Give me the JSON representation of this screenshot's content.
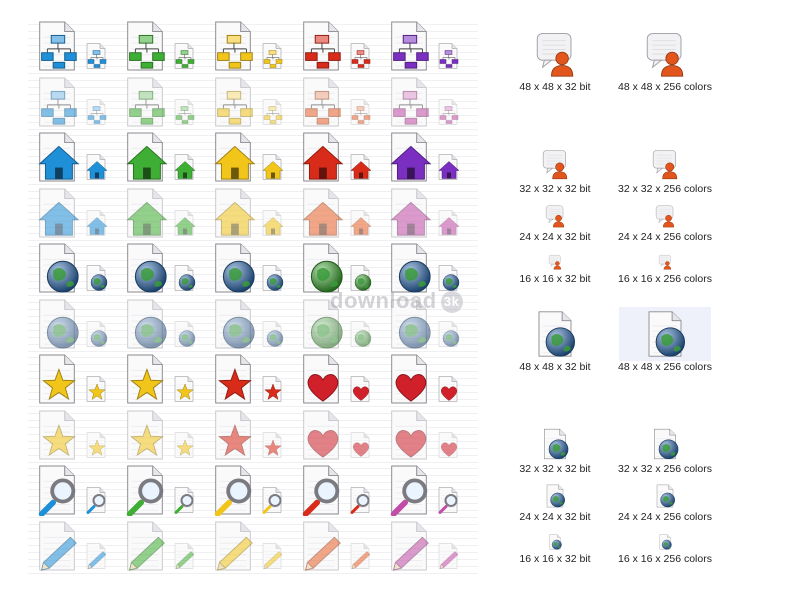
{
  "colors": {
    "blue": "#1f8fd8",
    "green": "#3fae34",
    "yellow": "#f2c51b",
    "red": "#d92b1a",
    "purple": "#7a2fc0",
    "orange": "#e8632b",
    "pink": "#c24da8",
    "globe": "#2f6fb8",
    "heart": "#d0202a",
    "user": "#e2561e"
  },
  "rows": [
    {
      "icon": "sitemap-document-icon",
      "variant": "bold",
      "palette": [
        "blue",
        "green",
        "yellow",
        "red",
        "purple"
      ]
    },
    {
      "icon": "sitemap-document-icon",
      "variant": "light",
      "palette": [
        "blue",
        "green",
        "yellow",
        "orange",
        "pink"
      ]
    },
    {
      "icon": "home-document-icon",
      "variant": "bold",
      "palette": [
        "blue",
        "green",
        "yellow",
        "red",
        "purple"
      ]
    },
    {
      "icon": "home-document-icon",
      "variant": "light",
      "palette": [
        "blue",
        "green",
        "yellow",
        "orange",
        "pink"
      ]
    },
    {
      "icon": "globe-document-icon",
      "variant": "bold",
      "palette": [
        "globe",
        "globe",
        "globe",
        "green",
        "globe"
      ]
    },
    {
      "icon": "globe-document-icon",
      "variant": "light",
      "palette": [
        "globe",
        "globe",
        "globe",
        "green",
        "globe"
      ]
    },
    {
      "icon": "star-document-icon",
      "variant": "bold",
      "palette": [
        "yellow",
        "yellow",
        "red",
        "heart",
        "heart"
      ],
      "shapes": [
        "star",
        "star",
        "star",
        "heart",
        "heart"
      ]
    },
    {
      "icon": "star-document-icon",
      "variant": "light",
      "palette": [
        "yellow",
        "yellow",
        "red",
        "heart",
        "heart"
      ],
      "shapes": [
        "star",
        "star",
        "star",
        "heart",
        "heart"
      ]
    },
    {
      "icon": "magnifier-document-icon",
      "variant": "bold",
      "palette": [
        "blue",
        "green",
        "yellow",
        "red",
        "pink"
      ]
    },
    {
      "icon": "pencil-document-icon",
      "variant": "light",
      "palette": [
        "blue",
        "green",
        "yellow",
        "orange",
        "pink"
      ]
    }
  ],
  "watermark": {
    "text": "download",
    "badge": "3k"
  },
  "user_samples": [
    {
      "label": "48 x 48 x 32 bit",
      "size": 48,
      "shaded": false
    },
    {
      "label": "48 x 48 x 256 colors",
      "size": 48,
      "shaded": false
    },
    {
      "label": "32 x 32 x 32 bit",
      "size": 32,
      "shaded": false
    },
    {
      "label": "32 x 32 x 256 colors",
      "size": 32,
      "shaded": false
    },
    {
      "label": "24 x 24 x 32 bit",
      "size": 24,
      "shaded": false
    },
    {
      "label": "24 x 24 x 256 colors",
      "size": 24,
      "shaded": false
    },
    {
      "label": "16 x 16 x 32 bit",
      "size": 16,
      "shaded": false
    },
    {
      "label": "16 x 16 x 256 colors",
      "size": 16,
      "shaded": false
    }
  ],
  "globe_samples": [
    {
      "label": "48 x 48 x 32 bit",
      "size": 48,
      "shaded": false
    },
    {
      "label": "48 x 48 x 256 colors",
      "size": 48,
      "shaded": true
    },
    {
      "label": "32 x 32 x 32 bit",
      "size": 32,
      "shaded": false
    },
    {
      "label": "32 x 32 x 256 colors",
      "size": 32,
      "shaded": false
    },
    {
      "label": "24 x 24 x 32 bit",
      "size": 24,
      "shaded": false
    },
    {
      "label": "24 x 24 x 256 colors",
      "size": 24,
      "shaded": false
    },
    {
      "label": "16 x 16 x 32 bit",
      "size": 16,
      "shaded": false
    },
    {
      "label": "16 x 16 x 256 colors",
      "size": 16,
      "shaded": false
    }
  ]
}
